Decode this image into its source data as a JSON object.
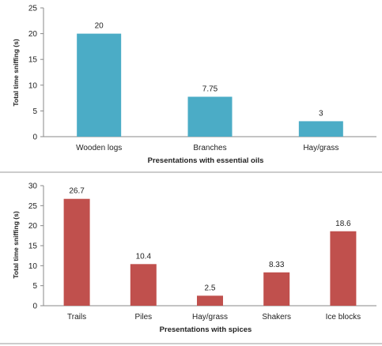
{
  "chart_data": [
    {
      "type": "bar",
      "categories": [
        "Wooden logs",
        "Branches",
        "Hay/grass"
      ],
      "values": [
        20,
        7.75,
        3
      ],
      "data_labels": [
        "20",
        "7.75",
        "3"
      ],
      "title": "",
      "xlabel": "Presentations with essential oils",
      "ylabel": "Total time sniffing (s)",
      "ylim": [
        0,
        25
      ],
      "yticks": [
        0,
        5,
        10,
        15,
        20,
        25
      ],
      "bar_color": "#4bacc6",
      "grid": false,
      "legend": "none"
    },
    {
      "type": "bar",
      "categories": [
        "Trails",
        "Piles",
        "Hay/grass",
        "Shakers",
        "Ice blocks"
      ],
      "values": [
        26.7,
        10.4,
        2.5,
        8.33,
        18.6
      ],
      "data_labels": [
        "26.7",
        "10.4",
        "2.5",
        "8.33",
        "18.6"
      ],
      "title": "",
      "xlabel": "Presentations with spices",
      "ylabel": "Total time sniffing (s)",
      "ylim": [
        0,
        30
      ],
      "yticks": [
        0,
        5,
        10,
        15,
        20,
        25,
        30
      ],
      "bar_color": "#c0504d",
      "grid": false,
      "legend": "none"
    }
  ]
}
